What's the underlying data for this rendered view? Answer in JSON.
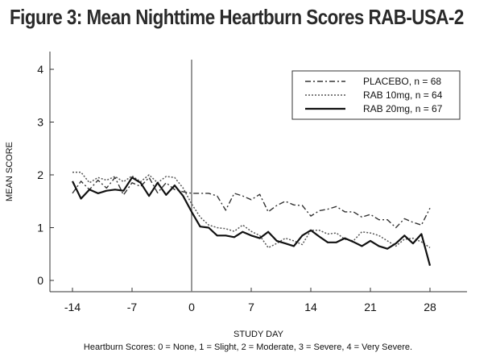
{
  "figure": {
    "title": "Figure 3: Mean Nighttime Heartburn Scores RAB-USA-2"
  },
  "chart_data": {
    "type": "line",
    "title": "Figure 3: Mean Nighttime Heartburn Scores RAB-USA-2",
    "xlabel": "STUDY DAY",
    "ylabel": "MEAN SCORE",
    "xlim": [
      -14,
      28
    ],
    "ylim": [
      0,
      4
    ],
    "x_ticks": [
      -14,
      -7,
      0,
      7,
      14,
      21,
      28
    ],
    "y_ticks": [
      0,
      1,
      2,
      3,
      4
    ],
    "reference_line_x": 0,
    "grid": false,
    "legend_position": "top-right",
    "footnote": "Heartburn Scores: 0 = None, 1 = Slight, 2 = Moderate, 3 = Severe, 4 = Very Severe.",
    "series": [
      {
        "name": "PLACEBO, n = 68",
        "line_style": "dash-dot",
        "x": [
          -14,
          -13,
          -12,
          -11,
          -10,
          -9,
          -8,
          -7,
          -6,
          -5,
          -4,
          -3,
          -2,
          -1,
          0,
          1,
          2,
          3,
          4,
          5,
          6,
          7,
          8,
          9,
          10,
          11,
          12,
          13,
          14,
          15,
          16,
          17,
          18,
          19,
          20,
          21,
          22,
          23,
          24,
          25,
          26,
          27,
          28
        ],
        "y": [
          1.65,
          1.88,
          1.72,
          1.9,
          1.75,
          1.95,
          1.62,
          1.85,
          1.78,
          1.95,
          1.66,
          1.85,
          1.72,
          1.68,
          1.65,
          1.65,
          1.65,
          1.6,
          1.33,
          1.65,
          1.6,
          1.53,
          1.63,
          1.3,
          1.42,
          1.5,
          1.43,
          1.42,
          1.22,
          1.32,
          1.35,
          1.4,
          1.3,
          1.3,
          1.2,
          1.25,
          1.15,
          1.15,
          1.0,
          1.17,
          1.1,
          1.05,
          1.37
        ]
      },
      {
        "name": "RAB 10mg, n = 64",
        "line_style": "dotted",
        "x": [
          -14,
          -13,
          -12,
          -11,
          -10,
          -9,
          -8,
          -7,
          -6,
          -5,
          -4,
          -3,
          -2,
          -1,
          0,
          1,
          2,
          3,
          4,
          5,
          6,
          7,
          8,
          9,
          10,
          11,
          12,
          13,
          14,
          15,
          16,
          17,
          18,
          19,
          20,
          21,
          22,
          23,
          24,
          25,
          26,
          27,
          28
        ],
        "y": [
          2.05,
          2.05,
          1.85,
          1.95,
          1.9,
          1.97,
          1.87,
          1.98,
          1.87,
          2.0,
          1.85,
          1.97,
          1.95,
          1.75,
          1.45,
          1.2,
          1.05,
          1.0,
          0.98,
          0.93,
          1.05,
          0.93,
          0.85,
          0.62,
          0.7,
          0.8,
          0.75,
          0.68,
          0.95,
          0.95,
          0.88,
          0.9,
          0.78,
          0.75,
          0.92,
          0.9,
          0.85,
          0.75,
          0.65,
          0.78,
          0.8,
          0.73,
          0.62
        ]
      },
      {
        "name": "RAB 20mg, n = 67",
        "line_style": "solid",
        "x": [
          -14,
          -13,
          -12,
          -11,
          -10,
          -9,
          -8,
          -7,
          -6,
          -5,
          -4,
          -3,
          -2,
          -1,
          0,
          1,
          2,
          3,
          4,
          5,
          6,
          7,
          8,
          9,
          10,
          11,
          12,
          13,
          14,
          15,
          16,
          17,
          18,
          19,
          20,
          21,
          22,
          23,
          24,
          25,
          26,
          27,
          28
        ],
        "y": [
          1.88,
          1.55,
          1.72,
          1.65,
          1.7,
          1.72,
          1.7,
          1.95,
          1.85,
          1.6,
          1.85,
          1.62,
          1.8,
          1.6,
          1.3,
          1.02,
          1.0,
          0.85,
          0.85,
          0.82,
          0.92,
          0.85,
          0.8,
          0.92,
          0.75,
          0.7,
          0.65,
          0.85,
          0.95,
          0.83,
          0.72,
          0.72,
          0.8,
          0.73,
          0.65,
          0.75,
          0.65,
          0.6,
          0.7,
          0.85,
          0.7,
          0.88,
          0.28
        ]
      }
    ]
  }
}
